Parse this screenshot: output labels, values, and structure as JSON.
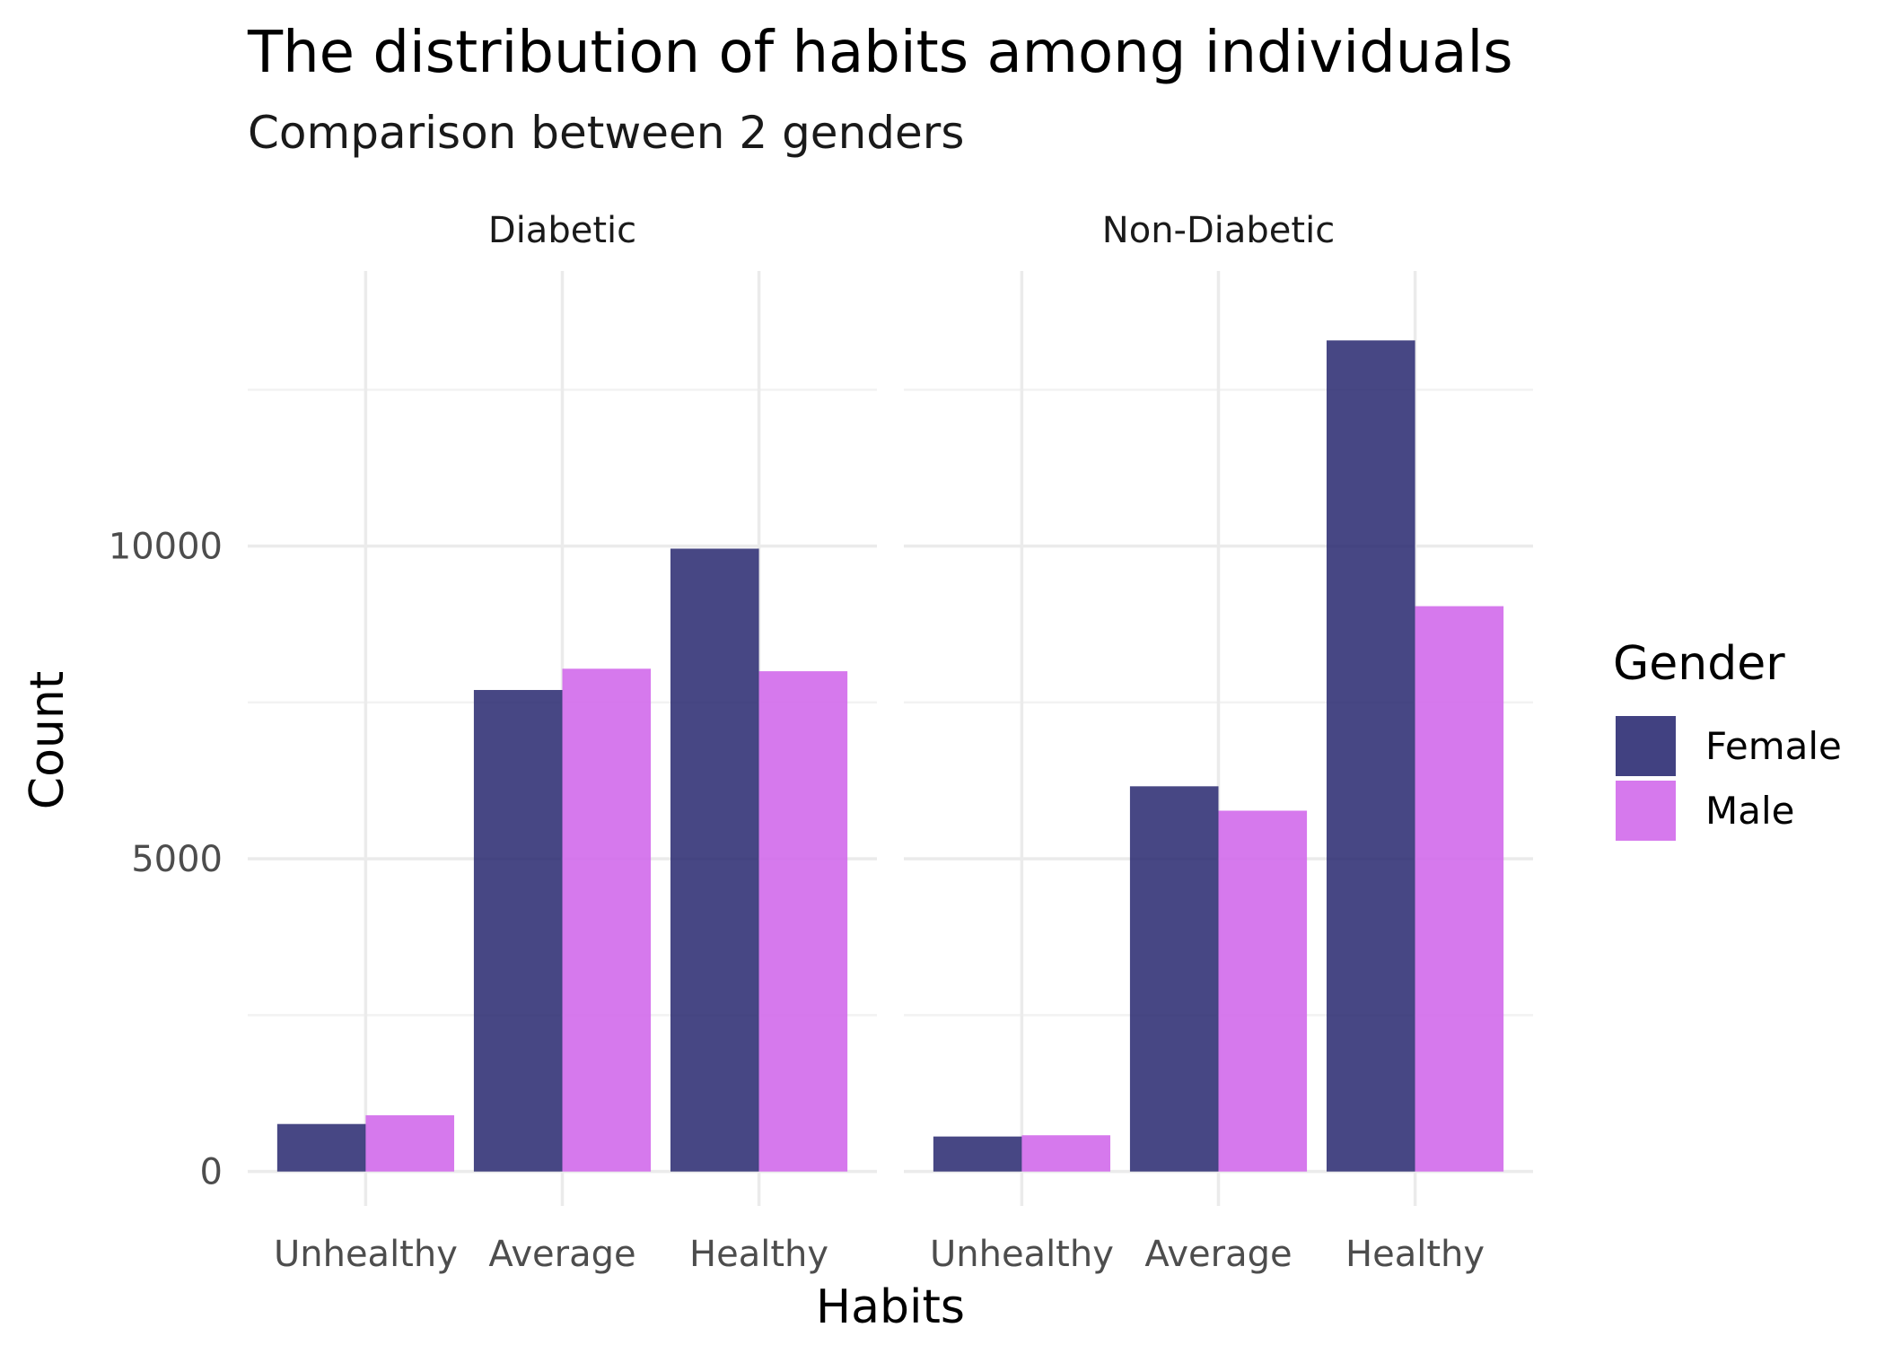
{
  "chart_data": {
    "type": "bar",
    "title": "The distribution of habits among individuals",
    "subtitle": "Comparison between 2 genders",
    "xlabel": "Habits",
    "ylabel": "Count",
    "categories": [
      "Unhealthy",
      "Average",
      "Healthy"
    ],
    "facets": [
      "Diabetic",
      "Non-Diabetic"
    ],
    "y_ticks": [
      0,
      5000,
      10000
    ],
    "ylim": [
      -550,
      14400
    ],
    "grid": true,
    "legend": {
      "title": "Gender",
      "placement": "right",
      "entries": [
        {
          "name": "Female",
          "color": "#27276f"
        },
        {
          "name": "Male",
          "color": "#d16aeb"
        }
      ]
    },
    "series": [
      {
        "name": "Female",
        "color": "#27276f",
        "values": {
          "Diabetic": [
            760,
            7700,
            9960
          ],
          "Non-Diabetic": [
            560,
            6160,
            13290
          ]
        }
      },
      {
        "name": "Male",
        "color": "#d16aeb",
        "values": {
          "Diabetic": [
            900,
            8040,
            8000
          ],
          "Non-Diabetic": [
            580,
            5770,
            9040
          ]
        }
      }
    ]
  }
}
